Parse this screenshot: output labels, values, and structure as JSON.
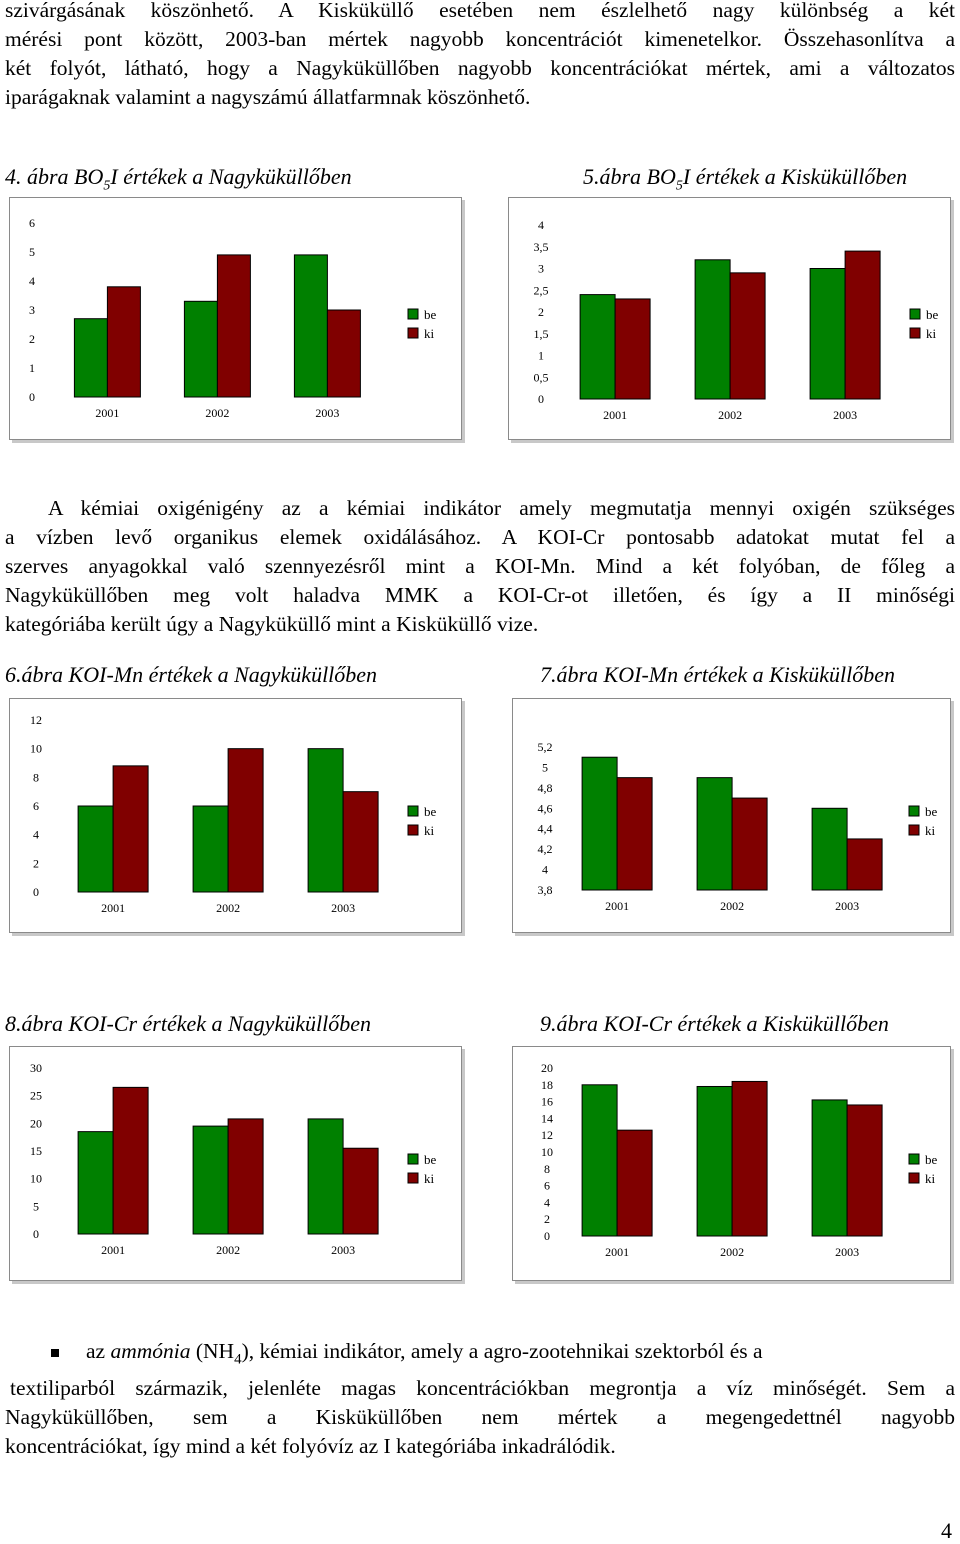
{
  "intro": {
    "lines": [
      "szivárgásának köszönhető. A Kisküküllő esetében nem észlelhető nagy különbség a két",
      "mérési pont között, 2003-ban mértek nagyobb koncentrációt kimenetelkor. Összehasonlítva a",
      "két folyót, látható, hogy a Nagyküküllőben nagyobb koncentrációkat mértek, ami a változatos",
      "iparágaknak valamint a nagyszámú állatfarmnak köszönhető."
    ]
  },
  "figures": {
    "fig4": {
      "caption_pre": "4. ábra BO",
      "caption_sub": "5",
      "caption_post": "I értékek a Nagyküküllőben"
    },
    "fig5": {
      "caption_pre": "5.ábra BO",
      "caption_sub": "5",
      "caption_post": "I értékek a Kisküküllőben"
    },
    "fig6": {
      "caption": "6.ábra KOI-Mn értékek a Nagyküküllőben"
    },
    "fig7": {
      "caption": "7.ábra KOI-Mn értékek a Kisküküllőben"
    },
    "fig8": {
      "caption": "8.ábra KOI-Cr értékek a Nagyküküllőben"
    },
    "fig9": {
      "caption": "9.ábra KOI-Cr értékek a Kisküküllőben"
    }
  },
  "middle": {
    "lines": [
      "A kémiai oxigénigény az a kémiai indikátor amely megmutatja mennyi oxigén szükséges",
      "a vízben levő organikus elemek oxidálásához. A KOI-Cr pontosabb adatokat mutat fel a",
      "szerves anyagokkal való szennyezésről mint a KOI-Mn. Mind a két folyóban, de főleg a",
      "Nagyküküllőben meg volt haladva MMK a KOI-Cr-ot illetően, és így a  II minőségi",
      "kategóriába került úgy a Nagyküküllő mint a Kisküküllő vize."
    ]
  },
  "ammonia": {
    "line1_pre": "az ",
    "line1_em": "ammónia",
    "line1_mid": " (NH",
    "line1_sub": "4",
    "line1_post": "), kémiai indikátor, amely a agro-zootehnikai szektorból és a",
    "lines": [
      "textiliparból származik, jelenléte magas koncentrációkban megrontja a víz minőségét. Sem a",
      "Nagyküküllőben, sem a Kisküküllőben nem mértek a megengedettnél nagyobb",
      "koncentrációkat, így mind a két folyóvíz az I kategóriába inkadrálódik."
    ]
  },
  "page_number": "4",
  "colors": {
    "be": "#008000",
    "ki": "#800000"
  },
  "chart_data": [
    {
      "type": "bar",
      "id": "fig4",
      "categories": [
        "2001",
        "2002",
        "2003"
      ],
      "series": [
        {
          "name": "be",
          "values": [
            2.7,
            3.3,
            4.9
          ]
        },
        {
          "name": "ki",
          "values": [
            3.8,
            4.9,
            3.0
          ]
        }
      ],
      "ylim": [
        0,
        6
      ],
      "yticks": [
        "0",
        "1",
        "2",
        "3",
        "4",
        "5",
        "6"
      ],
      "legend": "right"
    },
    {
      "type": "bar",
      "id": "fig5",
      "categories": [
        "2001",
        "2002",
        "2003"
      ],
      "series": [
        {
          "name": "be",
          "values": [
            2.4,
            3.2,
            3.0
          ]
        },
        {
          "name": "ki",
          "values": [
            2.3,
            2.9,
            3.4
          ]
        }
      ],
      "ylim": [
        0,
        4
      ],
      "yticks": [
        "0",
        "0,5",
        "1",
        "1,5",
        "2",
        "2,5",
        "3",
        "3,5",
        "4"
      ],
      "legend": "right"
    },
    {
      "type": "bar",
      "id": "fig6",
      "categories": [
        "2001",
        "2002",
        "2003"
      ],
      "series": [
        {
          "name": "be",
          "values": [
            6.0,
            6.0,
            10.0
          ]
        },
        {
          "name": "ki",
          "values": [
            8.8,
            10.0,
            7.0
          ]
        }
      ],
      "ylim": [
        0,
        12
      ],
      "yticks": [
        "0",
        "2",
        "4",
        "6",
        "8",
        "10",
        "12"
      ],
      "legend": "right"
    },
    {
      "type": "bar",
      "id": "fig7",
      "categories": [
        "2001",
        "2002",
        "2003"
      ],
      "series": [
        {
          "name": "be",
          "values": [
            5.1,
            4.9,
            4.6
          ]
        },
        {
          "name": "ki",
          "values": [
            4.9,
            4.7,
            4.3
          ]
        }
      ],
      "ylim": [
        3.8,
        5.2
      ],
      "yticks": [
        "3,8",
        "4",
        "4,2",
        "4,4",
        "4,6",
        "4,8",
        "5",
        "5,2"
      ],
      "legend": "right"
    },
    {
      "type": "bar",
      "id": "fig8",
      "categories": [
        "2001",
        "2002",
        "2003"
      ],
      "series": [
        {
          "name": "be",
          "values": [
            18.5,
            19.5,
            20.8
          ]
        },
        {
          "name": "ki",
          "values": [
            26.5,
            20.8,
            15.5
          ]
        }
      ],
      "ylim": [
        0,
        30
      ],
      "yticks": [
        "0",
        "5",
        "10",
        "15",
        "20",
        "25",
        "30"
      ],
      "legend": "right"
    },
    {
      "type": "bar",
      "id": "fig9",
      "categories": [
        "2001",
        "2002",
        "2003"
      ],
      "series": [
        {
          "name": "be",
          "values": [
            18.0,
            17.8,
            16.2
          ]
        },
        {
          "name": "ki",
          "values": [
            12.6,
            18.4,
            15.6
          ]
        }
      ],
      "ylim": [
        0,
        20
      ],
      "yticks": [
        "0",
        "2",
        "4",
        "6",
        "8",
        "10",
        "12",
        "14",
        "16",
        "18",
        "20"
      ],
      "legend": "right"
    }
  ]
}
